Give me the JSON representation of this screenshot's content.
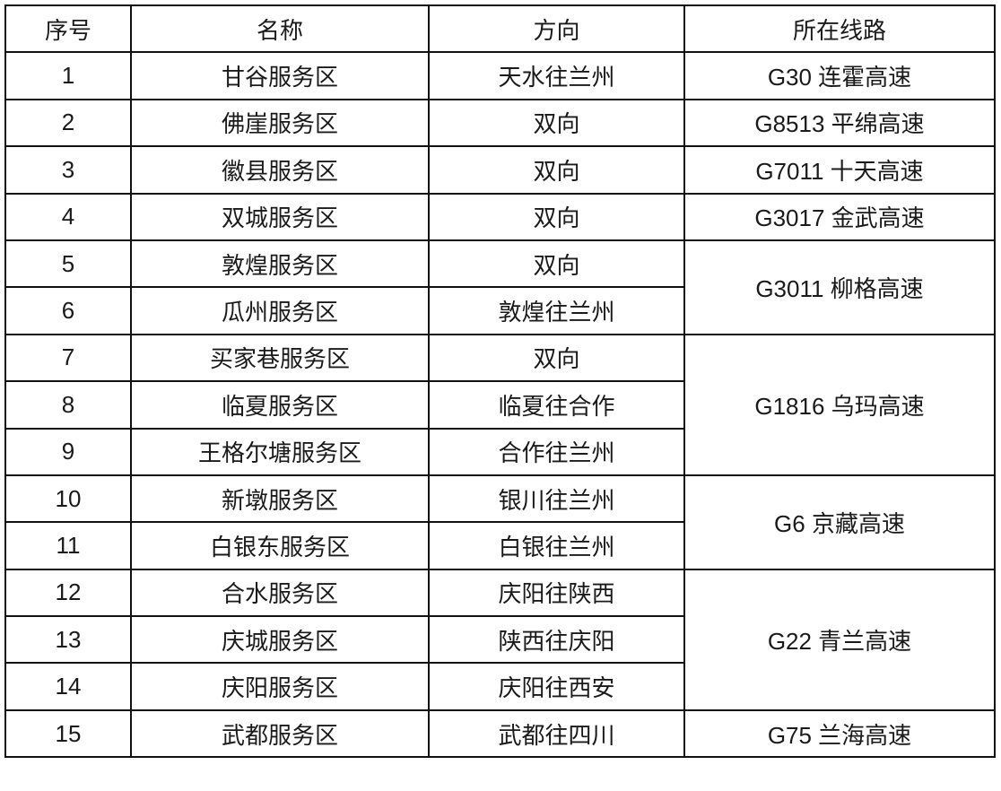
{
  "headers": [
    "序号",
    "名称",
    "方向",
    "所在线路"
  ],
  "rows": [
    {
      "no": "1",
      "name": "甘谷服务区",
      "direction": "天水往兰州"
    },
    {
      "no": "2",
      "name": "佛崖服务区",
      "direction": "双向"
    },
    {
      "no": "3",
      "name": "徽县服务区",
      "direction": "双向"
    },
    {
      "no": "4",
      "name": "双城服务区",
      "direction": "双向"
    },
    {
      "no": "5",
      "name": "敦煌服务区",
      "direction": "双向"
    },
    {
      "no": "6",
      "name": "瓜州服务区",
      "direction": "敦煌往兰州"
    },
    {
      "no": "7",
      "name": "买家巷服务区",
      "direction": "双向"
    },
    {
      "no": "8",
      "name": "临夏服务区",
      "direction": "临夏往合作"
    },
    {
      "no": "9",
      "name": "王格尔塘服务区",
      "direction": "合作往兰州"
    },
    {
      "no": "10",
      "name": "新墩服务区",
      "direction": "银川往兰州"
    },
    {
      "no": "11",
      "name": "白银东服务区",
      "direction": "白银往兰州"
    },
    {
      "no": "12",
      "name": "合水服务区",
      "direction": "庆阳往陕西"
    },
    {
      "no": "13",
      "name": "庆城服务区",
      "direction": "陕西往庆阳"
    },
    {
      "no": "14",
      "name": "庆阳服务区",
      "direction": "庆阳往西安"
    },
    {
      "no": "15",
      "name": "武都服务区",
      "direction": "武都往四川"
    }
  ],
  "routes": [
    "G30 连霍高速",
    "G8513 平绵高速",
    "G7011 十天高速",
    "G3017 金武高速",
    "G3011 柳格高速",
    "G1816 乌玛高速",
    "G6 京藏高速",
    "G22 青兰高速",
    "G75 兰海高速"
  ]
}
